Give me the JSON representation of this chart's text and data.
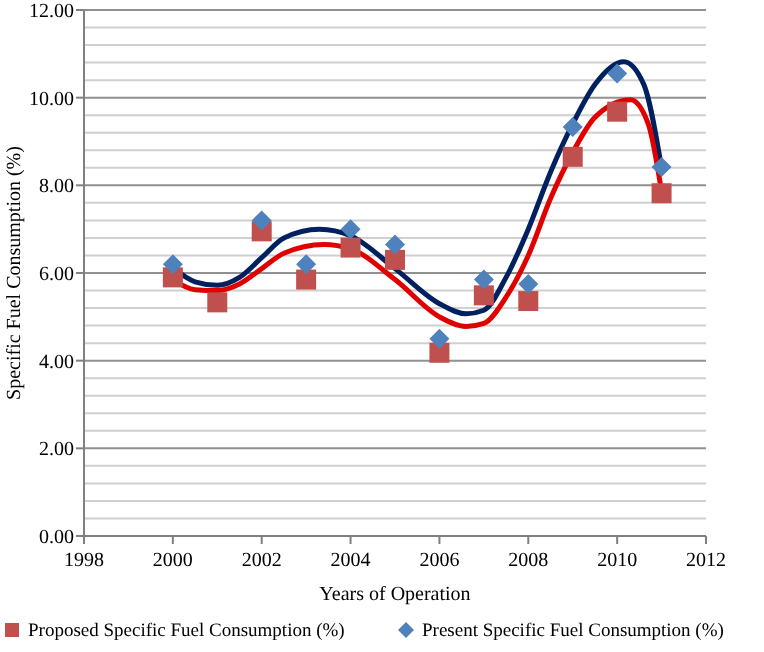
{
  "chart_data": {
    "type": "scatter",
    "xlabel": "Years of Operation",
    "ylabel": "Specific Fuel Consumption (%)",
    "x": [
      2000,
      2001,
      2002,
      2003,
      2004,
      2005,
      2006,
      2007,
      2008,
      2009,
      2010,
      2011
    ],
    "xlim": [
      1998,
      2012
    ],
    "xticks": [
      1998,
      2000,
      2002,
      2004,
      2006,
      2008,
      2010,
      2012
    ],
    "ylim": [
      0,
      12
    ],
    "yticks": [
      {
        "value": 0,
        "label": "0.00"
      },
      {
        "value": 0.4,
        "label": null
      },
      {
        "value": 0.8,
        "label": null
      },
      {
        "value": 1.2,
        "label": null
      },
      {
        "value": 1.6,
        "label": null
      },
      {
        "value": 2,
        "label": "2.00"
      },
      {
        "value": 2.4,
        "label": null
      },
      {
        "value": 2.8,
        "label": null
      },
      {
        "value": 3.2,
        "label": null
      },
      {
        "value": 3.6,
        "label": null
      },
      {
        "value": 4,
        "label": "4.00"
      },
      {
        "value": 4.4,
        "label": null
      },
      {
        "value": 4.8,
        "label": null
      },
      {
        "value": 5.2,
        "label": null
      },
      {
        "value": 5.6,
        "label": null
      },
      {
        "value": 6,
        "label": "6.00"
      },
      {
        "value": 6.4,
        "label": null
      },
      {
        "value": 6.8,
        "label": null
      },
      {
        "value": 7.2,
        "label": null
      },
      {
        "value": 7.6,
        "label": null
      },
      {
        "value": 8,
        "label": "8.00"
      },
      {
        "value": 8.4,
        "label": null
      },
      {
        "value": 8.8,
        "label": null
      },
      {
        "value": 9.2,
        "label": null
      },
      {
        "value": 9.6,
        "label": null
      },
      {
        "value": 10,
        "label": "10.00"
      },
      {
        "value": 10.4,
        "label": null
      },
      {
        "value": 10.8,
        "label": null
      },
      {
        "value": 11.2,
        "label": null
      },
      {
        "value": 11.6,
        "label": null
      },
      {
        "value": 12,
        "label": "12.00"
      }
    ],
    "grid": "y",
    "legend": "bottom",
    "series": [
      {
        "type": "line",
        "color": "#002060",
        "marker": "none",
        "x": [
          2000,
          2000.5,
          2001,
          2001.5,
          2002,
          2002.5,
          2003.3,
          2004,
          2005,
          2006,
          2006.6,
          2007,
          2007.5,
          2008,
          2008.5,
          2009,
          2009.5,
          2010.15,
          2010.6,
          2011
        ],
        "values": [
          6.12,
          5.8,
          5.72,
          5.9,
          6.35,
          6.8,
          7.0,
          6.85,
          6.1,
          5.3,
          5.07,
          5.15,
          5.9,
          7.0,
          8.3,
          9.4,
          10.3,
          10.82,
          10.3,
          8.4
        ]
      },
      {
        "type": "line",
        "color": "#e00000",
        "marker": "none",
        "x": [
          2000,
          2000.5,
          2001,
          2001.5,
          2002,
          2002.5,
          2003.4,
          2004,
          2005,
          2006,
          2006.6,
          2007,
          2007.5,
          2008,
          2008.5,
          2009,
          2009.5,
          2010.3,
          2010.7,
          2011
        ],
        "values": [
          5.85,
          5.62,
          5.6,
          5.75,
          6.1,
          6.45,
          6.65,
          6.55,
          5.85,
          5.0,
          4.78,
          4.85,
          5.45,
          6.4,
          7.7,
          8.75,
          9.55,
          9.95,
          9.4,
          7.85
        ]
      },
      {
        "name": "Proposed Specific Fuel Consumption (%)",
        "color": "#c0504d",
        "marker": "square",
        "values": [
          5.9,
          5.33,
          6.95,
          5.85,
          6.58,
          6.3,
          4.18,
          5.49,
          5.36,
          8.65,
          9.68,
          7.82
        ]
      },
      {
        "name": "Present Specific Fuel Consumption (%)",
        "color": "#4f81bd",
        "marker": "diamond",
        "values": [
          6.2,
          null,
          7.2,
          6.2,
          7.0,
          6.65,
          4.5,
          5.85,
          5.75,
          9.33,
          10.55,
          8.42
        ]
      }
    ]
  }
}
